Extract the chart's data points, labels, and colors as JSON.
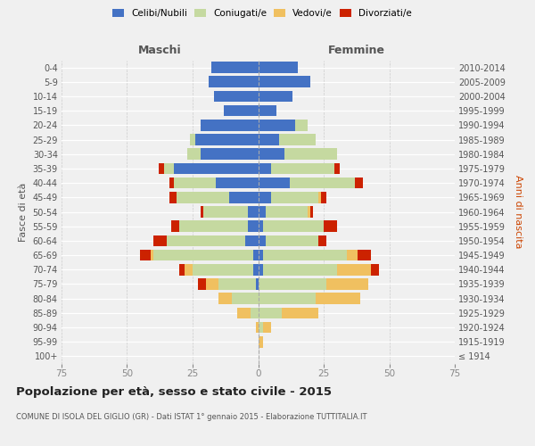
{
  "age_groups": [
    "100+",
    "95-99",
    "90-94",
    "85-89",
    "80-84",
    "75-79",
    "70-74",
    "65-69",
    "60-64",
    "55-59",
    "50-54",
    "45-49",
    "40-44",
    "35-39",
    "30-34",
    "25-29",
    "20-24",
    "15-19",
    "10-14",
    "5-9",
    "0-4"
  ],
  "birth_years": [
    "≤ 1914",
    "1915-1919",
    "1920-1924",
    "1925-1929",
    "1930-1934",
    "1935-1939",
    "1940-1944",
    "1945-1949",
    "1950-1954",
    "1955-1959",
    "1960-1964",
    "1965-1969",
    "1970-1974",
    "1975-1979",
    "1980-1984",
    "1985-1989",
    "1990-1994",
    "1995-1999",
    "2000-2004",
    "2005-2009",
    "2010-2014"
  ],
  "males": {
    "celibi": [
      0,
      0,
      0,
      0,
      0,
      1,
      2,
      2,
      5,
      4,
      4,
      11,
      16,
      32,
      22,
      24,
      22,
      13,
      17,
      19,
      18
    ],
    "coniugati": [
      0,
      0,
      0,
      3,
      10,
      14,
      23,
      38,
      30,
      26,
      17,
      20,
      16,
      4,
      5,
      2,
      0,
      0,
      0,
      0,
      0
    ],
    "vedovi": [
      0,
      0,
      1,
      5,
      5,
      5,
      3,
      1,
      0,
      0,
      0,
      0,
      0,
      0,
      0,
      0,
      0,
      0,
      0,
      0,
      0
    ],
    "divorziati": [
      0,
      0,
      0,
      0,
      0,
      3,
      2,
      4,
      5,
      3,
      1,
      3,
      2,
      2,
      0,
      0,
      0,
      0,
      0,
      0,
      0
    ]
  },
  "females": {
    "nubili": [
      0,
      0,
      0,
      0,
      0,
      0,
      2,
      2,
      3,
      2,
      3,
      5,
      12,
      5,
      10,
      8,
      14,
      7,
      13,
      20,
      15
    ],
    "coniugate": [
      0,
      0,
      2,
      9,
      22,
      26,
      28,
      32,
      20,
      23,
      16,
      18,
      25,
      24,
      20,
      14,
      5,
      0,
      0,
      0,
      0
    ],
    "vedove": [
      0,
      2,
      3,
      14,
      17,
      16,
      13,
      4,
      0,
      0,
      1,
      1,
      0,
      0,
      0,
      0,
      0,
      0,
      0,
      0,
      0
    ],
    "divorziate": [
      0,
      0,
      0,
      0,
      0,
      0,
      3,
      5,
      3,
      5,
      1,
      2,
      3,
      2,
      0,
      0,
      0,
      0,
      0,
      0,
      0
    ]
  },
  "colors": {
    "celibi": "#4472c4",
    "coniugati": "#c5d9a0",
    "vedovi": "#f0c060",
    "divorziati": "#cc2200"
  },
  "title": "Popolazione per età, sesso e stato civile - 2015",
  "subtitle": "COMUNE DI ISOLA DEL GIGLIO (GR) - Dati ISTAT 1° gennaio 2015 - Elaborazione TUTTITALIA.IT",
  "xlim": 75,
  "xlabel_left": "Maschi",
  "xlabel_right": "Femmine",
  "ylabel_left": "Fasce di età",
  "ylabel_right": "Anni di nascita",
  "background": "#f0f0f0",
  "bar_height": 0.78
}
